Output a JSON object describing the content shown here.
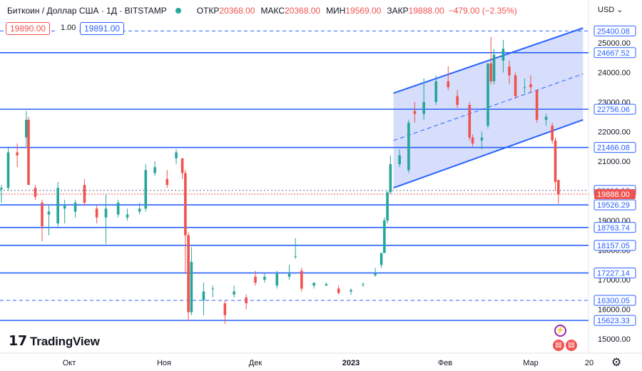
{
  "header": {
    "symbol": "Биткоин / Доллар США · 1Д · BITSTAMP",
    "open_label": "ОТКР",
    "open_value": "20368.00",
    "high_label": "МАКС",
    "high_value": "20368.00",
    "low_label": "МИН",
    "low_value": "19569.00",
    "close_label": "ЗАКР",
    "close_value": "19888.00",
    "change": "−479.00 (−2.35%)"
  },
  "trade": {
    "sell": "19890.00",
    "spread": "1.00",
    "buy": "19891.00"
  },
  "currency_label": "USD",
  "brand": "TradingView",
  "colors": {
    "up": "#26a69a",
    "down": "#ef5350",
    "line": "#2962ff",
    "channel_fill": "#c8d3fb"
  },
  "chart_data": {
    "type": "candlestick",
    "ylim": [
      15000,
      26100
    ],
    "y_ticks": [
      15000,
      16000,
      17000,
      18000,
      19000,
      20000,
      21000,
      22000,
      23000,
      24000,
      25000
    ],
    "x_labels": [
      {
        "label": "Окт",
        "date": "2022-10-01"
      },
      {
        "label": "Ноя",
        "date": "2022-11-01"
      },
      {
        "label": "Дек",
        "date": "2022-12-01"
      },
      {
        "label": "2023",
        "date": "2023-01-01"
      },
      {
        "label": "Фев",
        "date": "2023-02-01"
      },
      {
        "label": "Мар",
        "date": "2023-03-01"
      },
      {
        "label": "20",
        "date": "2023-03-20"
      }
    ],
    "candles": [
      {
        "date": "2022-09-01",
        "o": 20050,
        "h": 20200,
        "l": 19600,
        "c": 20100
      },
      {
        "date": "2022-09-04",
        "o": 20100,
        "h": 21500,
        "l": 20000,
        "c": 21300
      },
      {
        "date": "2022-09-08",
        "o": 21300,
        "h": 21600,
        "l": 20800,
        "c": 21200
      },
      {
        "date": "2022-09-12",
        "o": 21800,
        "h": 22700,
        "l": 21500,
        "c": 22400
      },
      {
        "date": "2022-09-13",
        "o": 22400,
        "h": 22500,
        "l": 20200,
        "c": 20200
      },
      {
        "date": "2022-09-16",
        "o": 20100,
        "h": 20200,
        "l": 19700,
        "c": 19800
      },
      {
        "date": "2022-09-19",
        "o": 19600,
        "h": 19700,
        "l": 18300,
        "c": 18800
      },
      {
        "date": "2022-09-22",
        "o": 19200,
        "h": 19500,
        "l": 18500,
        "c": 19300
      },
      {
        "date": "2022-09-26",
        "o": 18900,
        "h": 20300,
        "l": 18800,
        "c": 20100
      },
      {
        "date": "2022-09-29",
        "o": 19400,
        "h": 19700,
        "l": 18900,
        "c": 19500
      },
      {
        "date": "2022-10-03",
        "o": 19300,
        "h": 19700,
        "l": 19100,
        "c": 19600
      },
      {
        "date": "2022-10-06",
        "o": 20200,
        "h": 20400,
        "l": 19500,
        "c": 19600
      },
      {
        "date": "2022-10-10",
        "o": 19400,
        "h": 19500,
        "l": 18900,
        "c": 19100
      },
      {
        "date": "2022-10-13",
        "o": 19100,
        "h": 19900,
        "l": 18200,
        "c": 19400
      },
      {
        "date": "2022-10-17",
        "o": 19200,
        "h": 19700,
        "l": 19100,
        "c": 19600
      },
      {
        "date": "2022-10-20",
        "o": 19100,
        "h": 19400,
        "l": 19000,
        "c": 19200
      },
      {
        "date": "2022-10-24",
        "o": 19300,
        "h": 19600,
        "l": 19200,
        "c": 19400
      },
      {
        "date": "2022-10-26",
        "o": 19400,
        "h": 20900,
        "l": 19300,
        "c": 20700
      },
      {
        "date": "2022-10-29",
        "o": 20600,
        "h": 21000,
        "l": 20500,
        "c": 20800
      },
      {
        "date": "2022-11-02",
        "o": 20400,
        "h": 20700,
        "l": 20100,
        "c": 20200
      },
      {
        "date": "2022-11-05",
        "o": 21100,
        "h": 21400,
        "l": 20900,
        "c": 21300
      },
      {
        "date": "2022-11-07",
        "o": 21100,
        "h": 21100,
        "l": 20400,
        "c": 20600
      },
      {
        "date": "2022-11-08",
        "o": 20600,
        "h": 20700,
        "l": 17200,
        "c": 18500
      },
      {
        "date": "2022-11-09",
        "o": 18500,
        "h": 18600,
        "l": 15600,
        "c": 15900
      },
      {
        "date": "2022-11-10",
        "o": 15900,
        "h": 18100,
        "l": 15800,
        "c": 17600
      },
      {
        "date": "2022-11-14",
        "o": 16300,
        "h": 16900,
        "l": 15800,
        "c": 16600
      },
      {
        "date": "2022-11-17",
        "o": 16700,
        "h": 16800,
        "l": 16400,
        "c": 16700
      },
      {
        "date": "2022-11-21",
        "o": 16200,
        "h": 16300,
        "l": 15500,
        "c": 15800
      },
      {
        "date": "2022-11-24",
        "o": 16500,
        "h": 16800,
        "l": 16400,
        "c": 16600
      },
      {
        "date": "2022-11-28",
        "o": 16400,
        "h": 16500,
        "l": 16000,
        "c": 16200
      },
      {
        "date": "2022-12-01",
        "o": 17100,
        "h": 17300,
        "l": 16800,
        "c": 16900
      },
      {
        "date": "2022-12-04",
        "o": 17000,
        "h": 17200,
        "l": 16900,
        "c": 17100
      },
      {
        "date": "2022-12-08",
        "o": 16800,
        "h": 17300,
        "l": 16700,
        "c": 17200
      },
      {
        "date": "2022-12-12",
        "o": 17100,
        "h": 17500,
        "l": 17000,
        "c": 17200
      },
      {
        "date": "2022-12-14",
        "o": 17800,
        "h": 18400,
        "l": 17700,
        "c": 17800
      },
      {
        "date": "2022-12-16",
        "o": 17300,
        "h": 17400,
        "l": 16600,
        "c": 16700
      },
      {
        "date": "2022-12-20",
        "o": 16800,
        "h": 16900,
        "l": 16700,
        "c": 16900
      },
      {
        "date": "2022-12-24",
        "o": 16800,
        "h": 16900,
        "l": 16800,
        "c": 16850
      },
      {
        "date": "2022-12-28",
        "o": 16700,
        "h": 16800,
        "l": 16500,
        "c": 16550
      },
      {
        "date": "2023-01-01",
        "o": 16600,
        "h": 16700,
        "l": 16500,
        "c": 16650
      },
      {
        "date": "2023-01-05",
        "o": 16850,
        "h": 16900,
        "l": 16750,
        "c": 16850
      },
      {
        "date": "2023-01-09",
        "o": 17150,
        "h": 17400,
        "l": 17100,
        "c": 17200
      },
      {
        "date": "2023-01-11",
        "o": 17500,
        "h": 17900,
        "l": 17400,
        "c": 17900
      },
      {
        "date": "2023-01-12",
        "o": 17900,
        "h": 19100,
        "l": 17900,
        "c": 19000
      },
      {
        "date": "2023-01-13",
        "o": 19000,
        "h": 20000,
        "l": 18900,
        "c": 19950
      },
      {
        "date": "2023-01-14",
        "o": 19950,
        "h": 21200,
        "l": 19900,
        "c": 20900
      },
      {
        "date": "2023-01-17",
        "o": 20900,
        "h": 21400,
        "l": 20800,
        "c": 21200
      },
      {
        "date": "2023-01-20",
        "o": 20700,
        "h": 22400,
        "l": 20600,
        "c": 22300
      },
      {
        "date": "2023-01-22",
        "o": 22700,
        "h": 23000,
        "l": 22300,
        "c": 22600
      },
      {
        "date": "2023-01-25",
        "o": 22600,
        "h": 23800,
        "l": 22400,
        "c": 23000
      },
      {
        "date": "2023-01-29",
        "o": 23000,
        "h": 23900,
        "l": 22900,
        "c": 23700
      },
      {
        "date": "2023-02-02",
        "o": 23700,
        "h": 24200,
        "l": 23400,
        "c": 23500
      },
      {
        "date": "2023-02-05",
        "o": 23200,
        "h": 23400,
        "l": 22800,
        "c": 22900
      },
      {
        "date": "2023-02-09",
        "o": 22900,
        "h": 23000,
        "l": 21700,
        "c": 21800
      },
      {
        "date": "2023-02-10",
        "o": 21800,
        "h": 21900,
        "l": 21500,
        "c": 21600
      },
      {
        "date": "2023-02-13",
        "o": 21700,
        "h": 22000,
        "l": 21400,
        "c": 21800
      },
      {
        "date": "2023-02-15",
        "o": 22200,
        "h": 24300,
        "l": 22100,
        "c": 24300
      },
      {
        "date": "2023-02-16",
        "o": 24300,
        "h": 25200,
        "l": 23600,
        "c": 23700
      },
      {
        "date": "2023-02-17",
        "o": 23700,
        "h": 24800,
        "l": 23600,
        "c": 24600
      },
      {
        "date": "2023-02-20",
        "o": 24400,
        "h": 25100,
        "l": 24000,
        "c": 24800
      },
      {
        "date": "2023-02-22",
        "o": 24200,
        "h": 24400,
        "l": 23600,
        "c": 23900
      },
      {
        "date": "2023-02-24",
        "o": 23900,
        "h": 24000,
        "l": 23100,
        "c": 23200
      },
      {
        "date": "2023-02-27",
        "o": 23500,
        "h": 23800,
        "l": 23300,
        "c": 23500
      },
      {
        "date": "2023-03-01",
        "o": 23600,
        "h": 23900,
        "l": 23300,
        "c": 23500
      },
      {
        "date": "2023-03-03",
        "o": 23400,
        "h": 23400,
        "l": 22300,
        "c": 22400
      },
      {
        "date": "2023-03-06",
        "o": 22400,
        "h": 22600,
        "l": 22200,
        "c": 22500
      },
      {
        "date": "2023-03-08",
        "o": 22200,
        "h": 22300,
        "l": 21600,
        "c": 21700
      },
      {
        "date": "2023-03-09",
        "o": 21700,
        "h": 21800,
        "l": 20000,
        "c": 20300
      },
      {
        "date": "2023-03-10",
        "o": 20368,
        "h": 20368,
        "l": 19569,
        "c": 19888
      }
    ],
    "horizontal_levels": [
      {
        "price": 25400.08,
        "label": "25400.08",
        "style": "dashed"
      },
      {
        "price": 24667.52,
        "label": "24667.52",
        "style": "solid"
      },
      {
        "price": 22756.06,
        "label": "22756.06",
        "style": "solid"
      },
      {
        "price": 21466.08,
        "label": "21466.08",
        "style": "solid"
      },
      {
        "price": 20016.16,
        "label": "20016.16",
        "style": "dotted"
      },
      {
        "price": 19526.29,
        "label": "19526.29",
        "style": "solid"
      },
      {
        "price": 18763.74,
        "label": "18763.74",
        "style": "solid"
      },
      {
        "price": 18157.05,
        "label": "18157.05",
        "style": "solid"
      },
      {
        "price": 17227.14,
        "label": "17227.14",
        "style": "solid"
      },
      {
        "price": 16300.05,
        "label": "16300.05",
        "style": "dashed"
      },
      {
        "price": 15623.33,
        "label": "15623.33",
        "style": "solid"
      }
    ],
    "last_price": {
      "price": 19888,
      "label": "19888.00"
    },
    "channel": {
      "start": "2023-01-15",
      "end": "2023-03-18",
      "lower": [
        20100,
        22400
      ],
      "upper": [
        23300,
        25500
      ]
    }
  }
}
